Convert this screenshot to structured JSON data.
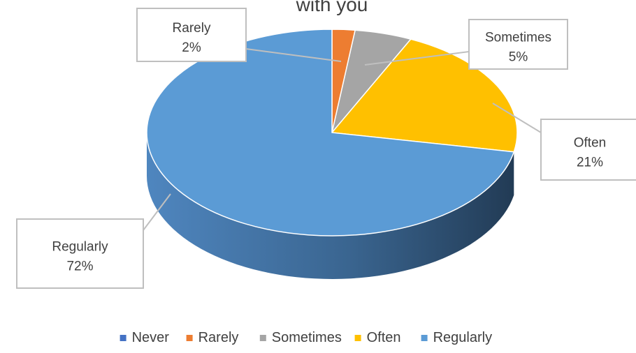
{
  "chart_data": {
    "type": "pie",
    "title": "with you",
    "style": "3d-exploded-pie",
    "categories": [
      "Never",
      "Rarely",
      "Sometimes",
      "Often",
      "Regularly"
    ],
    "values": [
      0,
      2,
      5,
      21,
      72
    ],
    "value_format": "percent",
    "data_labels": [
      {
        "category": "Rarely",
        "value": "2%"
      },
      {
        "category": "Sometimes",
        "value": "5%"
      },
      {
        "category": "Often",
        "value": "21%"
      },
      {
        "category": "Regularly",
        "value": "72%"
      }
    ],
    "colors": {
      "Never": "#4472c4",
      "Rarely": "#ed7d31",
      "Sometimes": "#a5a5a5",
      "Often": "#ffc000",
      "Regularly": "#5b9bd5"
    },
    "legend": {
      "position": "bottom",
      "entries": [
        "Never",
        "Rarely",
        "Sometimes",
        "Often",
        "Regularly"
      ]
    }
  }
}
